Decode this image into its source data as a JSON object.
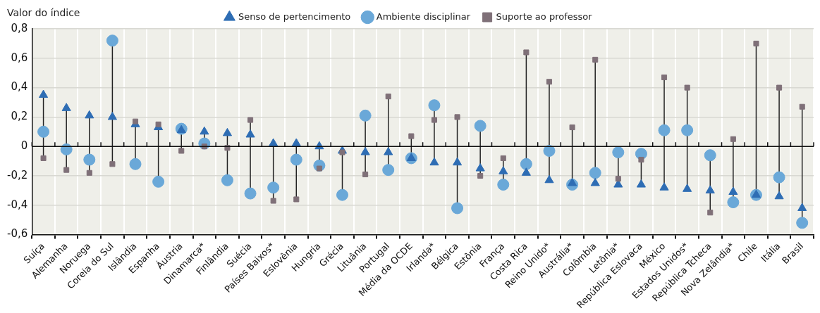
{
  "chart_data": {
    "type": "scatter",
    "ylabel": "Valor do índice",
    "categories": [
      "Suíça",
      "Alemanha",
      "Noruega",
      "Coreia do Sul",
      "Islândia",
      "Espanha",
      "Áustria",
      "Dinamarca*",
      "Finlândia",
      "Suécia",
      "Países Baixos*",
      "Eslovênia",
      "Hungria",
      "Grécia",
      "Lituânia",
      "Portugal",
      "Média da OCDE",
      "Irlanda*",
      "Bélgica",
      "Estônia",
      "França",
      "Costa Rica",
      "Reino Unido*",
      "Austrália*",
      "Colômbia",
      "Letônia*",
      "República Eslovaca",
      "México",
      "Estados Unidos*",
      "República Tcheca",
      "Nova Zelândia*",
      "Chile",
      "Itália",
      "Brasil"
    ],
    "series": [
      {
        "name": "Senso de pertencimento",
        "color": "#2e6db4",
        "marker": "triangle",
        "values": [
          0.35,
          0.26,
          0.21,
          0.2,
          0.15,
          0.13,
          0.11,
          0.1,
          0.09,
          0.08,
          0.02,
          0.02,
          0.0,
          -0.03,
          -0.04,
          -0.04,
          -0.08,
          -0.11,
          -0.11,
          -0.15,
          -0.17,
          -0.18,
          -0.23,
          -0.25,
          -0.25,
          -0.26,
          -0.26,
          -0.28,
          -0.29,
          -0.3,
          -0.31,
          -0.33,
          -0.34,
          -0.42
        ]
      },
      {
        "name": "Ambiente disciplinar",
        "color": "#6aa8d8",
        "marker": "circle",
        "values": [
          0.1,
          -0.02,
          -0.09,
          0.72,
          -0.12,
          -0.24,
          0.12,
          0.02,
          -0.23,
          -0.32,
          -0.28,
          -0.09,
          -0.13,
          -0.33,
          0.21,
          -0.16,
          -0.08,
          0.28,
          -0.42,
          0.14,
          -0.26,
          -0.12,
          -0.03,
          -0.26,
          -0.18,
          -0.04,
          -0.05,
          0.11,
          0.11,
          -0.06,
          -0.38,
          -0.33,
          -0.21,
          -0.52
        ]
      },
      {
        "name": "Suporte ao professor",
        "color": "#7f7078",
        "marker": "square",
        "values": [
          -0.08,
          -0.16,
          -0.18,
          -0.12,
          0.17,
          0.15,
          -0.03,
          0.0,
          -0.01,
          0.18,
          -0.37,
          -0.36,
          -0.15,
          -0.04,
          -0.19,
          0.34,
          0.07,
          0.18,
          0.2,
          -0.2,
          -0.08,
          0.64,
          0.44,
          0.13,
          0.59,
          -0.22,
          -0.09,
          0.47,
          0.4,
          -0.45,
          0.05,
          0.7,
          0.4,
          0.27
        ]
      }
    ],
    "ylim": [
      -0.6,
      0.8
    ],
    "yticks": [
      {
        "value": -0.6,
        "label": "-0,6"
      },
      {
        "value": -0.4,
        "label": "-0,4"
      },
      {
        "value": -0.2,
        "label": "-0,2"
      },
      {
        "value": 0,
        "label": "0"
      },
      {
        "value": 0.2,
        "label": "0,2"
      },
      {
        "value": 0.4,
        "label": "0,4"
      },
      {
        "value": 0.6,
        "label": "0,6"
      },
      {
        "value": 0.8,
        "label": "0,8"
      }
    ],
    "grid": true,
    "legend": "top"
  }
}
